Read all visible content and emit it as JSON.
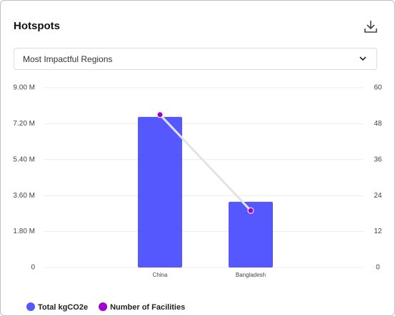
{
  "dropdown": {
    "selected": "Most Impactful Regions"
  },
  "chart_data": {
    "type": "bar",
    "title": "Hotspots",
    "categories": [
      "China",
      "Bangladesh"
    ],
    "series": [
      {
        "name": "Total kgCO2e",
        "color": "#5558ff",
        "values": [
          7540000,
          3290000
        ]
      },
      {
        "name": "Number of Facilities",
        "color": "#a000d0",
        "type": "line",
        "axis": "y2",
        "values": [
          51,
          19
        ]
      }
    ],
    "ylim": [
      0,
      9000000
    ],
    "yticks": [
      0,
      {
        "value": 1800000,
        "label": "1.80 M"
      },
      {
        "value": 3600000,
        "label": "3.60 M"
      },
      {
        "value": 5400000,
        "label": "5.40 M"
      },
      {
        "value": 7200000,
        "label": "7.20 M"
      },
      {
        "value": 9000000,
        "label": "9.00 M"
      }
    ],
    "y2lim": [
      0,
      60
    ],
    "y2ticks": [
      0,
      12,
      24,
      36,
      48,
      60
    ],
    "grid": true,
    "legend": "bottom-left"
  }
}
